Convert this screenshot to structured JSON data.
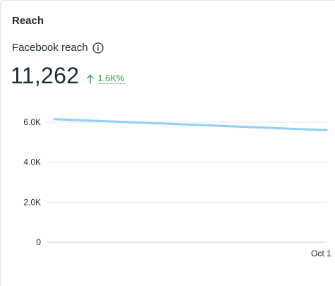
{
  "section": {
    "title": "Reach"
  },
  "metric": {
    "label": "Facebook reach",
    "info_icon": "info-icon",
    "value": "11,262",
    "delta": {
      "direction_icon": "arrow-up-icon",
      "value": "1.6K%",
      "color": "#31a24c"
    }
  },
  "chart_data": {
    "type": "line",
    "x": [
      "",
      "Oct 1"
    ],
    "series": [
      {
        "values": [
          6150,
          5600
        ],
        "color": "#8fd1f5"
      }
    ],
    "yticks": [
      0,
      2000,
      4000,
      6000
    ],
    "ytick_labels": [
      "0",
      "2.0K",
      "4.0K",
      "6.0K"
    ],
    "xtick_labels": [
      "Oct 1"
    ],
    "ylim": [
      0,
      6000
    ],
    "grid": true,
    "title": "",
    "xlabel": "",
    "ylabel": ""
  }
}
